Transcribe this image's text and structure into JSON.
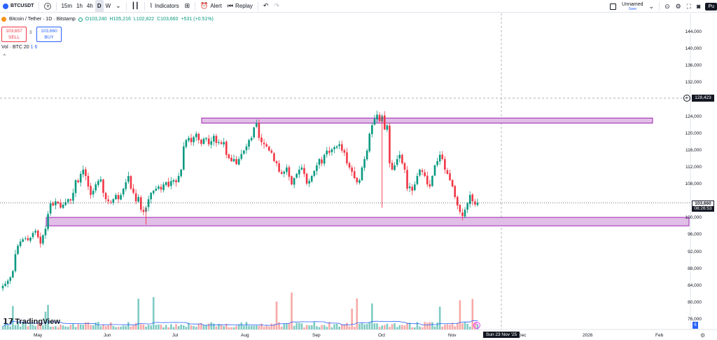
{
  "toolbar": {
    "symbol": "BTCUSDT",
    "timeframes": [
      "15m",
      "1h",
      "4h",
      "D",
      "W"
    ],
    "active_timeframe": "D",
    "indicators_label": "Indicators",
    "alert_label": "Alert",
    "replay_label": "Replay",
    "layout_name": "Unnamed",
    "layout_status": "Save",
    "publish_label": "Pu"
  },
  "legend": {
    "title": "Bitcoin / Tether · 1D · Bitstamp",
    "open": "O103,240",
    "high": "H105,216",
    "low": "L102,822",
    "close": "C103,660",
    "change": "+531 (+0.51%)"
  },
  "trade": {
    "sell_price": "103,657",
    "sell_label": "SELL",
    "spread": "3",
    "buy_price": "103,660",
    "buy_label": "BUY"
  },
  "volume": {
    "label": "Vol · BTC 20",
    "v1": "1",
    "v2": "6"
  },
  "price_axis": [
    "144,000",
    "140,000",
    "136,000",
    "132,000",
    "124,000",
    "120,000",
    "116,000",
    "112,000",
    "108,000",
    "100,000",
    "96,000",
    "92,000",
    "88,000",
    "84,000",
    "80,000",
    "76,000"
  ],
  "horizontal_price": "128,423",
  "current_price": "103,660",
  "countdown": "08:26:53",
  "time_axis": [
    "May",
    "Jun",
    "Jul",
    "Aug",
    "Sep",
    "Oct",
    "Nov",
    "Dec",
    "2026",
    "Feb"
  ],
  "cursor_date": "Sun 23 Nov '25",
  "logo": "TradingView",
  "colors": {
    "up": "#089981",
    "down": "#f23645",
    "zone": "#e1bee7",
    "zone_border": "#9c27b0",
    "vol_up": "#80cbc4",
    "vol_down": "#f7a9a7",
    "ma": "#2962ff"
  },
  "chart_data": {
    "type": "candlestick",
    "title": "Bitcoin / Tether · 1D · Bitstamp",
    "y_range": [
      74000,
      148000
    ],
    "x_range": [
      "2025-04-20",
      "2026-02-20"
    ],
    "zones": [
      {
        "from": 122500,
        "to": 123700,
        "x_start": "2025-07-14",
        "x_end": "2026-01-15"
      },
      {
        "from": 98200,
        "to": 100200,
        "x_start": "2025-05-08",
        "x_end": "2026-02-20"
      }
    ],
    "closes": [
      84000,
      84500,
      85200,
      86000,
      87500,
      91500,
      93500,
      94500,
      95000,
      95200,
      94800,
      95400,
      96500,
      97000,
      95500,
      94000,
      96000,
      97500,
      101000,
      103500,
      103000,
      104000,
      103500,
      102500,
      103200,
      103800,
      104500,
      104200,
      106000,
      109000,
      108500,
      110500,
      111500,
      110000,
      107500,
      105500,
      106500,
      108000,
      108800,
      109200,
      106000,
      104500,
      104000,
      103800,
      104500,
      105500,
      104500,
      105500,
      107000,
      108500,
      110000,
      107000,
      106000,
      104000,
      105000,
      102000,
      101500,
      102500,
      104500,
      106000,
      106500,
      107000,
      107500,
      106800,
      108000,
      108500,
      107500,
      108800,
      109000,
      108500,
      110000,
      111500,
      117000,
      118500,
      119000,
      118000,
      119200,
      120000,
      118500,
      117600,
      118800,
      119000,
      117500,
      118200,
      119500,
      117800,
      118000,
      117600,
      118000,
      115000,
      114200,
      113500,
      114000,
      112800,
      114000,
      115200,
      116000,
      117000,
      118500,
      119000,
      121500,
      122500,
      119000,
      118000,
      117500,
      117000,
      116000,
      115500,
      113500,
      113000,
      111000,
      110500,
      111000,
      112000,
      109800,
      108000,
      109500,
      110500,
      111500,
      112000,
      110500,
      108200,
      108800,
      110000,
      111200,
      112500,
      114000,
      113000,
      115000,
      116000,
      115500,
      116300,
      116800,
      117000,
      117500,
      116000,
      115500,
      113000,
      112000,
      111000,
      109500,
      108500,
      109000,
      112000,
      114000,
      116000,
      120000,
      122000,
      123500,
      124500,
      123000,
      124200,
      121000,
      122000,
      113000,
      111500,
      112500,
      114000,
      115000,
      113000,
      111500,
      107000,
      107500,
      106500,
      108000,
      110000,
      111500,
      111000,
      110000,
      108000,
      107500,
      110000,
      112500,
      113500,
      115000,
      114000,
      111500,
      110500,
      109000,
      107500,
      105000,
      103000,
      101500,
      100500,
      102000,
      103500,
      105500,
      104000,
      103240,
      103660
    ]
  }
}
